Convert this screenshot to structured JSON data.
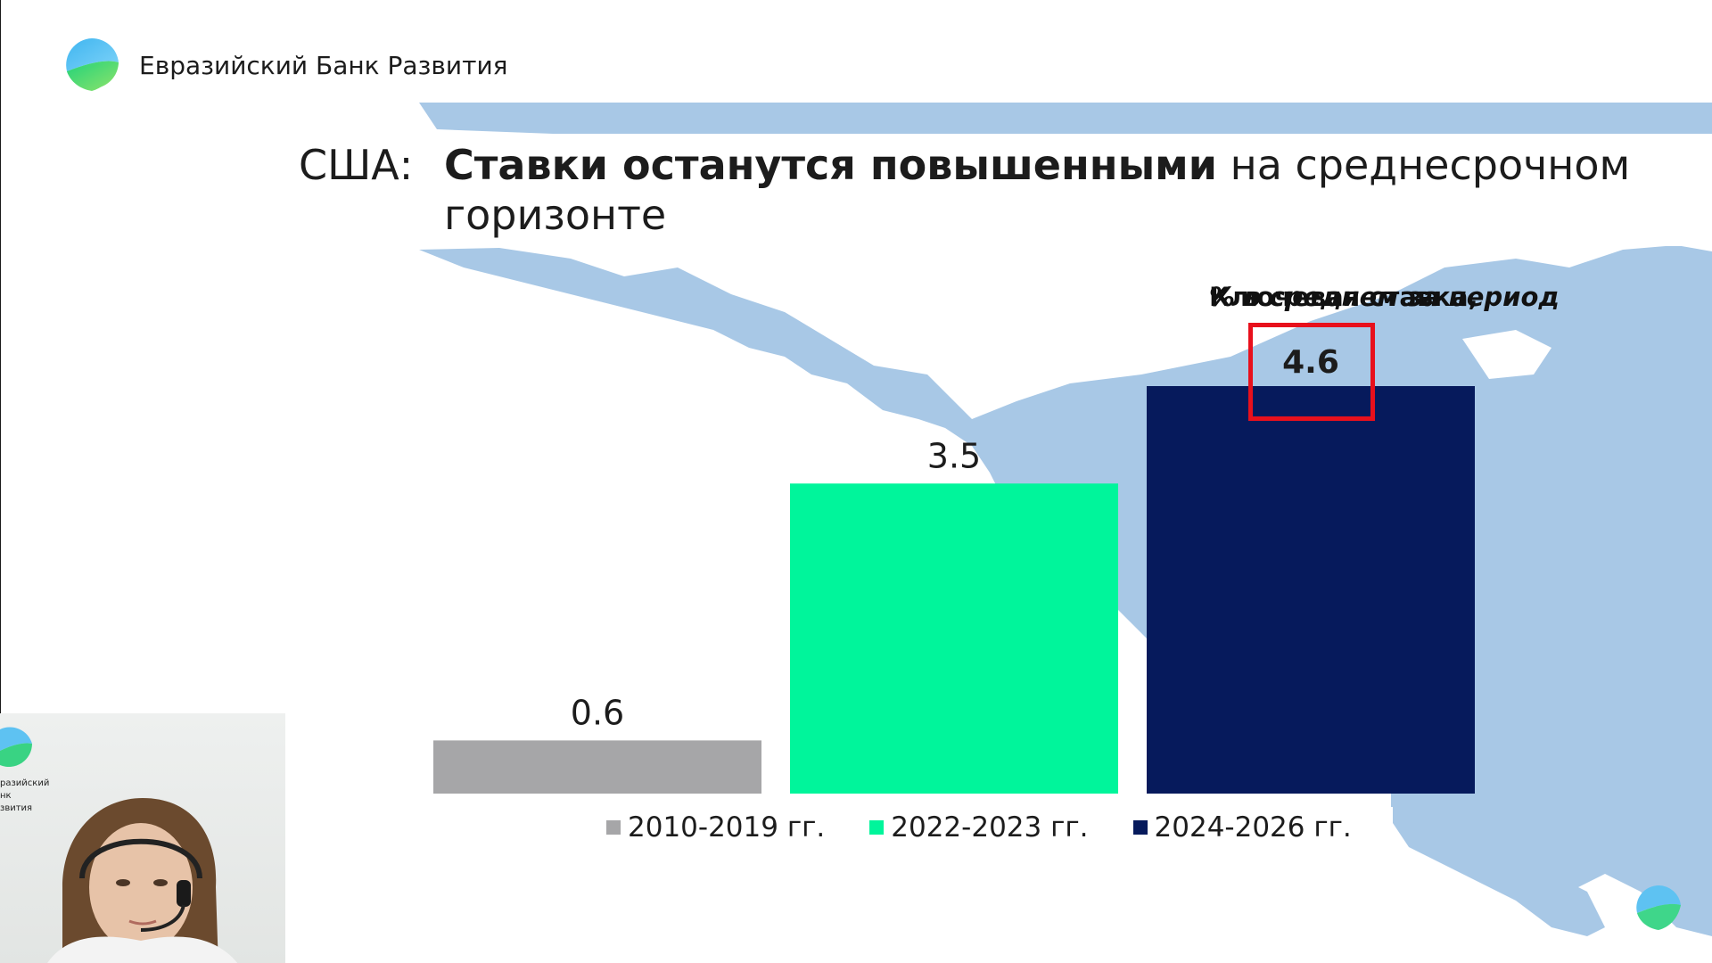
{
  "brand": {
    "name": "Евразийский Банк Развития",
    "logo_icon": "ebrd-circle-logo-icon"
  },
  "title": {
    "prefix": "США:",
    "bold_part": "Ставки останутся повышенными",
    "regular_part": " на среднесрочном",
    "line2": "горизонте"
  },
  "chart_title": {
    "bold_part": "Ключевая ставка, ",
    "italic_part": "% в среднем за период"
  },
  "colors": {
    "bar_2010_2019": "#a6a6a8",
    "bar_2022_2023": "#00f59b",
    "bar_2024_2026": "#061a5c",
    "map": "#a8c8e6",
    "highlight": "#e8101c"
  },
  "chart_data": {
    "type": "bar",
    "categories": [
      "2010-2019 гг.",
      "2022-2023 гг.",
      "2024-2026 гг."
    ],
    "values": [
      0.6,
      3.5,
      4.6
    ],
    "value_labels": [
      "0.6",
      "3.5",
      "4.6"
    ],
    "ylim": [
      0,
      4.6
    ],
    "grid": false,
    "legend_position": "bottom",
    "highlighted_category": "2024-2026 гг."
  },
  "webcam": {
    "logo_text_line1": "разийский",
    "logo_text_line2": "нк",
    "logo_text_line3": "звития"
  }
}
